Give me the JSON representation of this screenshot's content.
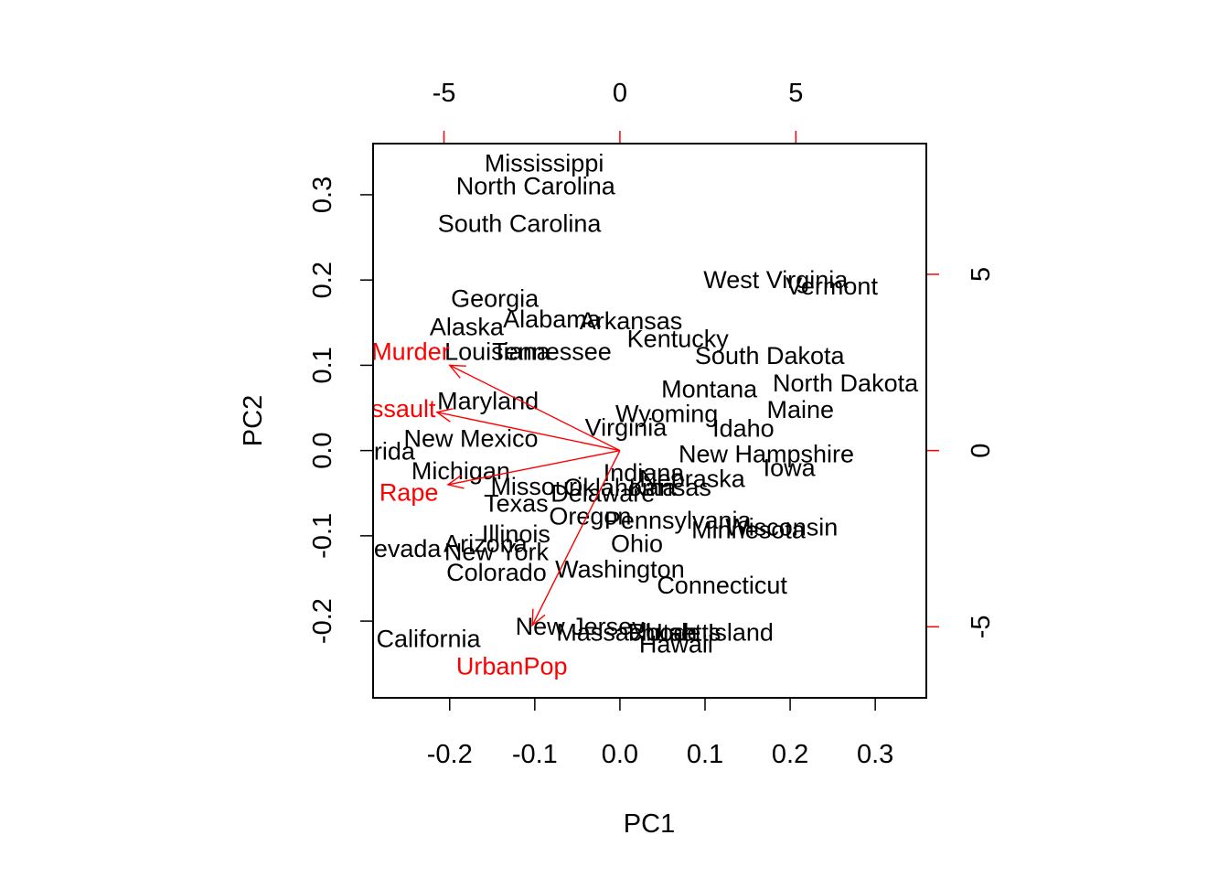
{
  "chart_data": {
    "type": "scatter",
    "subtype": "biplot",
    "title": "",
    "xlabel": "PC1",
    "ylabel": "PC2",
    "xlim": [
      -0.29,
      0.36
    ],
    "ylim": [
      -0.29,
      0.36
    ],
    "x_ticks": [
      "-0.2",
      "-0.1",
      "0.0",
      "0.1",
      "0.2",
      "0.3"
    ],
    "y_ticks": [
      "-0.2",
      "-0.1",
      "0.0",
      "0.1",
      "0.2",
      "0.3"
    ],
    "secondary_x_ticks": [
      "-5",
      "0",
      "5"
    ],
    "secondary_y_ticks": [
      "-5",
      "0",
      "5"
    ],
    "grid": false,
    "point_color": "#000000",
    "loading_color": "#ff0000",
    "points": [
      {
        "label": "Mississippi",
        "x": -0.089,
        "y": 0.338
      },
      {
        "label": "North Carolina",
        "x": -0.099,
        "y": 0.311
      },
      {
        "label": "South Carolina",
        "x": -0.118,
        "y": 0.267
      },
      {
        "label": "West Virginia",
        "x": 0.183,
        "y": 0.201
      },
      {
        "label": "Vermont",
        "x": 0.249,
        "y": 0.194
      },
      {
        "label": "Georgia",
        "x": -0.147,
        "y": 0.179
      },
      {
        "label": "Alabama",
        "x": -0.08,
        "y": 0.155
      },
      {
        "label": "Arkansas",
        "x": 0.013,
        "y": 0.153
      },
      {
        "label": "Alaska",
        "x": -0.18,
        "y": 0.146
      },
      {
        "label": "Kentucky",
        "x": 0.068,
        "y": 0.132
      },
      {
        "label": "Tennessee",
        "x": -0.08,
        "y": 0.117
      },
      {
        "label": "Louisiana",
        "x": -0.144,
        "y": 0.117
      },
      {
        "label": "South Dakota",
        "x": 0.176,
        "y": 0.112
      },
      {
        "label": "North Dakota",
        "x": 0.265,
        "y": 0.08
      },
      {
        "label": "Montana",
        "x": 0.105,
        "y": 0.073
      },
      {
        "label": "Maryland",
        "x": -0.155,
        "y": 0.059
      },
      {
        "label": "Maine",
        "x": 0.212,
        "y": 0.049
      },
      {
        "label": "Wyoming",
        "x": 0.055,
        "y": 0.044
      },
      {
        "label": "Virginia",
        "x": 0.007,
        "y": 0.028
      },
      {
        "label": "Idaho",
        "x": 0.145,
        "y": 0.027
      },
      {
        "label": "New Mexico",
        "x": -0.175,
        "y": 0.015
      },
      {
        "label": "Florida",
        "x": -0.285,
        "y": 0.0
      },
      {
        "label": "New Hampshire",
        "x": 0.172,
        "y": -0.003
      },
      {
        "label": "Iowa",
        "x": 0.199,
        "y": -0.019
      },
      {
        "label": "Indiana",
        "x": 0.028,
        "y": -0.025
      },
      {
        "label": "Michigan",
        "x": -0.187,
        "y": -0.023
      },
      {
        "label": "Nebraska",
        "x": 0.085,
        "y": -0.032
      },
      {
        "label": "Kansas",
        "x": 0.059,
        "y": -0.042
      },
      {
        "label": "Oklahoma",
        "x": 0.0,
        "y": -0.042
      },
      {
        "label": "Missouri",
        "x": -0.098,
        "y": -0.041
      },
      {
        "label": "Delaware",
        "x": -0.02,
        "y": -0.049
      },
      {
        "label": "Texas",
        "x": -0.122,
        "y": -0.061
      },
      {
        "label": "Oregon",
        "x": -0.035,
        "y": -0.076
      },
      {
        "label": "Pennsylvania",
        "x": 0.068,
        "y": -0.081
      },
      {
        "label": "Wisconsin",
        "x": 0.19,
        "y": -0.089
      },
      {
        "label": "Minnesota",
        "x": 0.151,
        "y": -0.092
      },
      {
        "label": "Illinois",
        "x": -0.122,
        "y": -0.097
      },
      {
        "label": "Arizona",
        "x": -0.158,
        "y": -0.108
      },
      {
        "label": "Ohio",
        "x": 0.02,
        "y": -0.108
      },
      {
        "label": "Nevada",
        "x": -0.26,
        "y": -0.114
      },
      {
        "label": "New York",
        "x": -0.145,
        "y": -0.118
      },
      {
        "label": "Washington",
        "x": 0.0,
        "y": -0.138
      },
      {
        "label": "Colorado",
        "x": -0.145,
        "y": -0.142
      },
      {
        "label": "Connecticut",
        "x": 0.12,
        "y": -0.157
      },
      {
        "label": "New Jersey",
        "x": -0.047,
        "y": -0.205
      },
      {
        "label": "Massachusetts",
        "x": 0.022,
        "y": -0.212
      },
      {
        "label": "Utah",
        "x": 0.06,
        "y": -0.212
      },
      {
        "label": "Rhode Island",
        "x": 0.095,
        "y": -0.212
      },
      {
        "label": "Hawaii",
        "x": 0.066,
        "y": -0.226
      },
      {
        "label": "California",
        "x": -0.225,
        "y": -0.22
      }
    ],
    "loadings": [
      {
        "label": "Murder",
        "x": -0.2,
        "y": 0.1,
        "label_x": -0.246,
        "label_y": 0.117
      },
      {
        "label": "Assault",
        "x": -0.215,
        "y": 0.045,
        "label_x": -0.264,
        "label_y": 0.05
      },
      {
        "label": "Rape",
        "x": -0.202,
        "y": -0.04,
        "label_x": -0.248,
        "label_y": -0.048
      },
      {
        "label": "UrbanPop",
        "x": -0.103,
        "y": -0.205,
        "label_x": -0.127,
        "label_y": -0.252
      }
    ]
  }
}
